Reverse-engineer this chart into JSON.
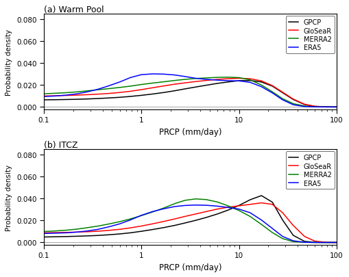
{
  "title_a": "(a) Warm Pool",
  "title_b": "(b) ITCZ",
  "xlabel": "PRCP (mm/day)",
  "ylabel": "Probability density",
  "xlim": [
    0.1,
    100
  ],
  "ylim": [
    -0.002,
    0.085
  ],
  "yticks": [
    0.0,
    0.02,
    0.04,
    0.06,
    0.08
  ],
  "legend_labels": [
    "GPCP",
    "GloSeaR",
    "MERRA2",
    "ERA5"
  ],
  "colors": [
    "black",
    "red",
    "green",
    "blue"
  ],
  "panel_a": {
    "x": [
      0.1,
      0.13,
      0.17,
      0.22,
      0.28,
      0.36,
      0.46,
      0.6,
      0.77,
      1.0,
      1.3,
      1.7,
      2.2,
      2.8,
      3.6,
      4.6,
      6.0,
      7.7,
      10.0,
      13.0,
      17.0,
      22.0,
      28.0,
      36.0,
      47.0,
      60.0,
      80.0,
      100.0
    ],
    "GPCP": [
      0.0065,
      0.0066,
      0.0068,
      0.007,
      0.0073,
      0.0077,
      0.0082,
      0.0088,
      0.0096,
      0.0106,
      0.0118,
      0.0132,
      0.0148,
      0.0165,
      0.0182,
      0.0198,
      0.0215,
      0.0228,
      0.024,
      0.0242,
      0.0228,
      0.019,
      0.013,
      0.0068,
      0.0022,
      0.0005,
      0.0001,
      1e-05
    ],
    "GloSeaR": [
      0.01,
      0.0102,
      0.0105,
      0.0108,
      0.0112,
      0.0117,
      0.0123,
      0.0132,
      0.0143,
      0.0158,
      0.0175,
      0.0192,
      0.0208,
      0.022,
      0.0232,
      0.0242,
      0.0252,
      0.0258,
      0.0262,
      0.0258,
      0.0238,
      0.0195,
      0.0135,
      0.0072,
      0.0025,
      0.0006,
      0.0001,
      1e-05
    ],
    "MERRA2": [
      0.012,
      0.0125,
      0.013,
      0.0138,
      0.0147,
      0.0157,
      0.0167,
      0.0178,
      0.019,
      0.0205,
      0.0218,
      0.023,
      0.0242,
      0.0252,
      0.026,
      0.0265,
      0.027,
      0.0272,
      0.0268,
      0.0248,
      0.02,
      0.0138,
      0.0075,
      0.003,
      0.0008,
      0.0001,
      1e-05,
      1e-06
    ],
    "ERA5": [
      0.0095,
      0.01,
      0.0108,
      0.012,
      0.0138,
      0.0162,
      0.0192,
      0.0228,
      0.0268,
      0.0295,
      0.0302,
      0.03,
      0.0292,
      0.0278,
      0.0262,
      0.0252,
      0.0245,
      0.024,
      0.0238,
      0.0225,
      0.0185,
      0.0128,
      0.0065,
      0.002,
      0.0004,
      5e-05,
      3e-06,
      1e-07
    ]
  },
  "panel_b": {
    "x": [
      0.1,
      0.13,
      0.17,
      0.22,
      0.28,
      0.36,
      0.46,
      0.6,
      0.77,
      1.0,
      1.3,
      1.7,
      2.2,
      2.8,
      3.6,
      4.6,
      6.0,
      7.7,
      10.0,
      13.0,
      17.0,
      22.0,
      28.0,
      36.0,
      47.0,
      60.0,
      80.0,
      100.0
    ],
    "GPCP": [
      0.005,
      0.0052,
      0.0054,
      0.0057,
      0.006,
      0.0064,
      0.007,
      0.0078,
      0.0088,
      0.0102,
      0.0118,
      0.0136,
      0.0156,
      0.0178,
      0.0202,
      0.0228,
      0.026,
      0.0295,
      0.0338,
      0.039,
      0.0428,
      0.0368,
      0.0205,
      0.0065,
      0.001,
      0.0001,
      1e-05,
      1e-06
    ],
    "GloSeaR": [
      0.0088,
      0.009,
      0.0092,
      0.0095,
      0.0098,
      0.0103,
      0.011,
      0.012,
      0.0133,
      0.015,
      0.017,
      0.0192,
      0.0215,
      0.0238,
      0.026,
      0.0282,
      0.0305,
      0.0322,
      0.0335,
      0.0348,
      0.0362,
      0.0348,
      0.0272,
      0.0155,
      0.0055,
      0.0012,
      0.0001,
      1e-05
    ],
    "MERRA2": [
      0.01,
      0.0105,
      0.0112,
      0.0122,
      0.0135,
      0.015,
      0.0168,
      0.019,
      0.0215,
      0.0245,
      0.0278,
      0.0315,
      0.0355,
      0.0385,
      0.0398,
      0.0392,
      0.037,
      0.0335,
      0.0292,
      0.0238,
      0.0165,
      0.009,
      0.0035,
      0.0008,
      0.0001,
      1e-05,
      1e-06,
      1e-07
    ],
    "ERA5": [
      0.0082,
      0.0085,
      0.0088,
      0.0095,
      0.0105,
      0.012,
      0.0142,
      0.017,
      0.0205,
      0.0248,
      0.0282,
      0.0308,
      0.0328,
      0.0338,
      0.0342,
      0.034,
      0.0332,
      0.032,
      0.0305,
      0.0272,
      0.0205,
      0.0128,
      0.0055,
      0.0015,
      0.0002,
      2e-05,
      1e-06,
      1e-07
    ]
  }
}
